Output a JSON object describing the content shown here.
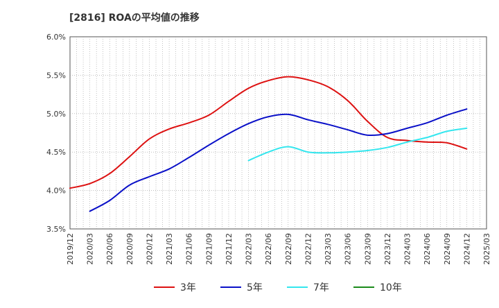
{
  "chart_data": {
    "type": "line",
    "title": "[2816]  ROAの平均値の推移",
    "xlabel": "",
    "ylabel": "",
    "ylim": [
      3.5,
      6.0
    ],
    "y_ticks": [
      "3.5%",
      "4.0%",
      "4.5%",
      "5.0%",
      "5.5%",
      "6.0%"
    ],
    "y_tick_values": [
      3.5,
      4.0,
      4.5,
      5.0,
      5.5,
      6.0
    ],
    "x_ticks": [
      "2019/12",
      "2020/03",
      "2020/06",
      "2020/09",
      "2020/12",
      "2021/03",
      "2021/06",
      "2021/09",
      "2021/12",
      "2022/03",
      "2022/06",
      "2022/09",
      "2022/12",
      "2023/03",
      "2023/06",
      "2023/09",
      "2023/12",
      "2024/03",
      "2024/06",
      "2024/09",
      "2024/12",
      "2025/03"
    ],
    "grid": true,
    "legend_position": "bottom",
    "series": [
      {
        "name": "3年",
        "color": "#dd1111",
        "x": [
          "2019/12",
          "2020/03",
          "2020/06",
          "2020/09",
          "2020/12",
          "2021/03",
          "2021/06",
          "2021/09",
          "2021/12",
          "2022/03",
          "2022/06",
          "2022/09",
          "2022/12",
          "2023/03",
          "2023/06",
          "2023/09",
          "2023/12",
          "2024/03",
          "2024/06",
          "2024/09",
          "2024/12"
        ],
        "values": [
          4.03,
          4.09,
          4.22,
          4.44,
          4.67,
          4.8,
          4.88,
          4.98,
          5.16,
          5.33,
          5.43,
          5.48,
          5.44,
          5.35,
          5.17,
          4.9,
          4.69,
          4.65,
          4.63,
          4.62,
          4.54
        ]
      },
      {
        "name": "5年",
        "color": "#0a10c8",
        "x": [
          "2020/03",
          "2020/06",
          "2020/09",
          "2020/12",
          "2021/03",
          "2021/06",
          "2021/09",
          "2021/12",
          "2022/03",
          "2022/06",
          "2022/09",
          "2022/12",
          "2023/03",
          "2023/06",
          "2023/09",
          "2023/12",
          "2024/03",
          "2024/06",
          "2024/09",
          "2024/12"
        ],
        "values": [
          3.73,
          3.87,
          4.07,
          4.18,
          4.28,
          4.43,
          4.59,
          4.74,
          4.87,
          4.96,
          4.99,
          4.92,
          4.86,
          4.79,
          4.72,
          4.74,
          4.81,
          4.88,
          4.98,
          5.06
        ]
      },
      {
        "name": "7年",
        "color": "#33e6ee",
        "x": [
          "2022/03",
          "2022/06",
          "2022/09",
          "2022/12",
          "2023/03",
          "2023/06",
          "2023/09",
          "2023/12",
          "2024/03",
          "2024/06",
          "2024/09",
          "2024/12"
        ],
        "values": [
          4.39,
          4.5,
          4.57,
          4.5,
          4.49,
          4.5,
          4.52,
          4.56,
          4.63,
          4.69,
          4.77,
          4.81
        ]
      },
      {
        "name": "10年",
        "color": "#1a8a1a",
        "x": [],
        "values": []
      }
    ]
  }
}
